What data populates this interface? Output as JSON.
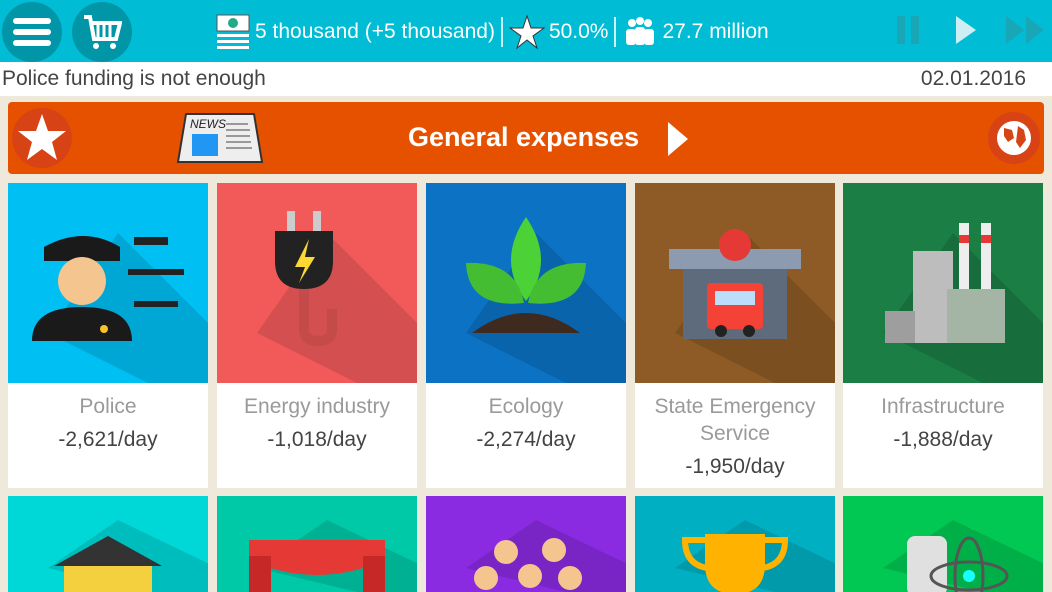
{
  "topbar": {
    "money": "5 thousand (+5 thousand)",
    "rating": "50.0%",
    "population": "27.7 million",
    "icons": [
      "menu-icon",
      "cart-icon",
      "money-icon",
      "star-icon",
      "people-icon",
      "pause-icon",
      "play-icon",
      "fast-forward-icon"
    ]
  },
  "status": {
    "message": "Police funding is not enough",
    "date": "02.01.2016"
  },
  "banner": {
    "title": "General expenses",
    "accent": "#E65100"
  },
  "cards": [
    {
      "name": "Police",
      "cost": "-2,621/day",
      "color": "#00BFF3"
    },
    {
      "name": "Energy industry",
      "cost": "-1,018/day",
      "color": "#F25A5A"
    },
    {
      "name": "Ecology",
      "cost": "-2,274/day",
      "color": "#0B72C4"
    },
    {
      "name": "State Emergency Service",
      "cost": "-1,950/day",
      "color": "#8E5A26"
    },
    {
      "name": "Infrastructure",
      "cost": "-1,888/day",
      "color": "#1B7E45"
    }
  ],
  "cards_row2": [
    {
      "color": "#00D8D8"
    },
    {
      "color": "#00C9A7"
    },
    {
      "color": "#8A2BE2"
    },
    {
      "color": "#00B0C2"
    },
    {
      "color": "#00C853"
    }
  ]
}
